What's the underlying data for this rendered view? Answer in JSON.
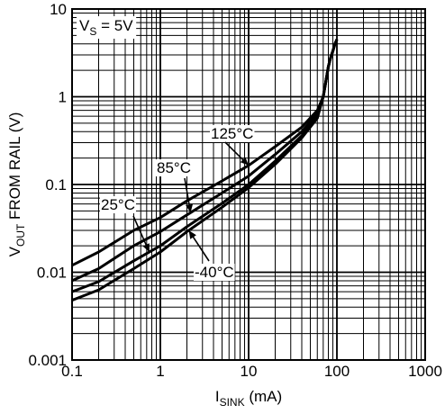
{
  "chart_data": {
    "type": "line",
    "title": "",
    "xlabel": {
      "main": "I",
      "sub": "SINK",
      "suffix": " (mA)"
    },
    "ylabel": {
      "main": "V",
      "sub": "OUT",
      "suffix": " FROM RAIL (V)"
    },
    "x_scale": "log",
    "y_scale": "log",
    "xlim": [
      0.1,
      1000
    ],
    "ylim": [
      0.001,
      10
    ],
    "x_ticks": [
      {
        "value": 0.1,
        "label": "0.1"
      },
      {
        "value": 1,
        "label": "1"
      },
      {
        "value": 10,
        "label": "10"
      },
      {
        "value": 100,
        "label": "100"
      },
      {
        "value": 1000,
        "label": "1000"
      }
    ],
    "y_ticks": [
      {
        "value": 10,
        "label": "10"
      },
      {
        "value": 1,
        "label": "1"
      },
      {
        "value": 0.1,
        "label": "0.1"
      },
      {
        "value": 0.01,
        "label": "0.01"
      },
      {
        "value": 0.001,
        "label": "0.001"
      }
    ],
    "grid": "on",
    "condition": {
      "main": "V",
      "sub": "S",
      "suffix": " = 5V"
    },
    "series": [
      {
        "name": "125°C",
        "x": [
          0.1,
          0.2,
          0.5,
          1,
          2,
          5,
          10,
          20,
          40,
          60,
          70,
          75,
          80,
          85,
          90,
          95,
          100
        ],
        "y": [
          0.012,
          0.017,
          0.03,
          0.042,
          0.065,
          0.11,
          0.165,
          0.27,
          0.45,
          0.7,
          1.0,
          1.5,
          2.2,
          2.8,
          3.3,
          4.0,
          4.5
        ]
      },
      {
        "name": "85°C",
        "x": [
          0.1,
          0.2,
          0.5,
          1,
          2,
          5,
          10,
          20,
          40,
          60,
          70,
          75,
          80,
          85,
          90,
          95,
          100
        ],
        "y": [
          0.008,
          0.011,
          0.02,
          0.029,
          0.045,
          0.08,
          0.125,
          0.22,
          0.4,
          0.65,
          1.0,
          1.5,
          2.2,
          2.8,
          3.3,
          4.0,
          4.5
        ]
      },
      {
        "name": "25°C",
        "x": [
          0.1,
          0.2,
          0.5,
          1,
          2,
          5,
          10,
          20,
          40,
          60,
          70,
          75,
          80,
          85,
          90,
          95,
          100
        ],
        "y": [
          0.006,
          0.0078,
          0.0135,
          0.02,
          0.033,
          0.061,
          0.1,
          0.185,
          0.36,
          0.6,
          1.0,
          1.5,
          2.2,
          2.8,
          3.3,
          4.0,
          4.5
        ]
      },
      {
        "name": "-40°C",
        "x": [
          0.1,
          0.2,
          0.5,
          1,
          2,
          5,
          10,
          20,
          40,
          60,
          70,
          75,
          80,
          85,
          90,
          95,
          100
        ],
        "y": [
          0.0048,
          0.0063,
          0.011,
          0.017,
          0.029,
          0.055,
          0.092,
          0.17,
          0.34,
          0.57,
          1.0,
          1.5,
          2.2,
          2.8,
          3.3,
          4.0,
          4.5
        ]
      }
    ],
    "annotations": [
      {
        "text": "125°C",
        "series": "125°C"
      },
      {
        "text": "85°C",
        "series": "85°C"
      },
      {
        "text": "25°C",
        "series": "25°C"
      },
      {
        "text": "-40°C",
        "series": "-40°C"
      }
    ]
  }
}
